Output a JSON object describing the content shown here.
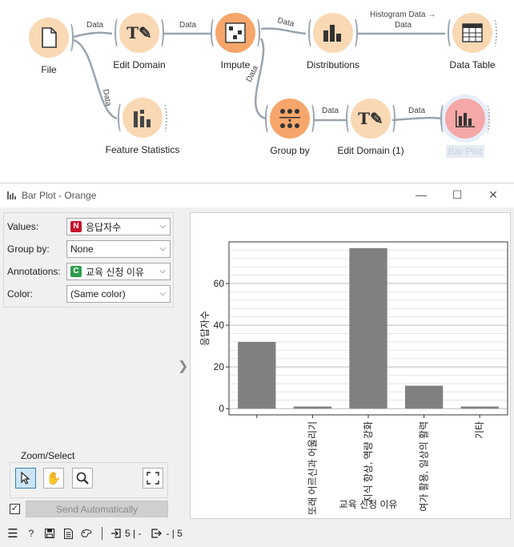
{
  "workflow": {
    "nodes": [
      {
        "name": "File",
        "icon": "file-icon"
      },
      {
        "name": "Edit Domain",
        "icon": "text-edit-icon"
      },
      {
        "name": "Feature Statistics",
        "icon": "bar-stats-icon"
      },
      {
        "name": "Impute",
        "icon": "impute-grid-icon"
      },
      {
        "name": "Distributions",
        "icon": "distribution-bars-icon"
      },
      {
        "name": "Data Table",
        "icon": "table-grid-icon"
      },
      {
        "name": "Group by",
        "icon": "group-by-dots-icon"
      },
      {
        "name": "Edit Domain (1)",
        "icon": "text-edit-icon"
      },
      {
        "name": "Bar Plot",
        "icon": "bar-plot-icon"
      }
    ],
    "link_labels": {
      "file_edit": "Data",
      "file_stats": "Data",
      "edit_impute": "Data",
      "impute_dist": "Data",
      "impute_group": "Data",
      "dist_table_1": "Histogram Data →",
      "dist_table_2": "Data",
      "group_edit1": "Data",
      "edit1_bar": "Data"
    },
    "colors": {
      "light_orange": "#f9d8b4",
      "orange": "#f6a66b",
      "red": "#f6a8a8",
      "link": "#9aa4ad"
    }
  },
  "window": {
    "title": "Bar Plot - Orange",
    "controls": {
      "minimize": "—",
      "maximize": "☐",
      "close": "✕"
    }
  },
  "controls": {
    "values_label": "Values:",
    "values_badge": "N",
    "values_value": "응답자수",
    "group_label": "Group by:",
    "group_value": "None",
    "annotations_label": "Annotations:",
    "annotations_badge": "C",
    "annotations_value": "교육 신청 이유",
    "color_label": "Color:",
    "color_value": "(Same color)",
    "badge_colors": {
      "N": "#c8102e",
      "C": "#2e9e4f"
    }
  },
  "zoom_select": {
    "title": "Zoom/Select",
    "tools": [
      "pointer-tool-icon",
      "pan-hand-icon",
      "zoom-magnifier-icon",
      "reset-zoom-icon"
    ]
  },
  "send": {
    "checked": "✓",
    "label": "Send Automatically"
  },
  "statusbar": {
    "input_count": "5 | -",
    "output_count": "- | 5"
  },
  "chart_data": {
    "type": "bar",
    "categories": [
      "",
      "또래 어르신과 어울리기",
      "지식 향상, 역량 강화",
      "여가 활용, 일상의 활력",
      "기타"
    ],
    "values": [
      32,
      1,
      77,
      11,
      1
    ],
    "xlabel": "교육 신청 이유",
    "ylabel": "응답자수",
    "ylim": [
      -3,
      80
    ],
    "yticks": [
      0,
      20,
      40,
      60
    ],
    "bar_color": "#808080",
    "grid": true
  }
}
